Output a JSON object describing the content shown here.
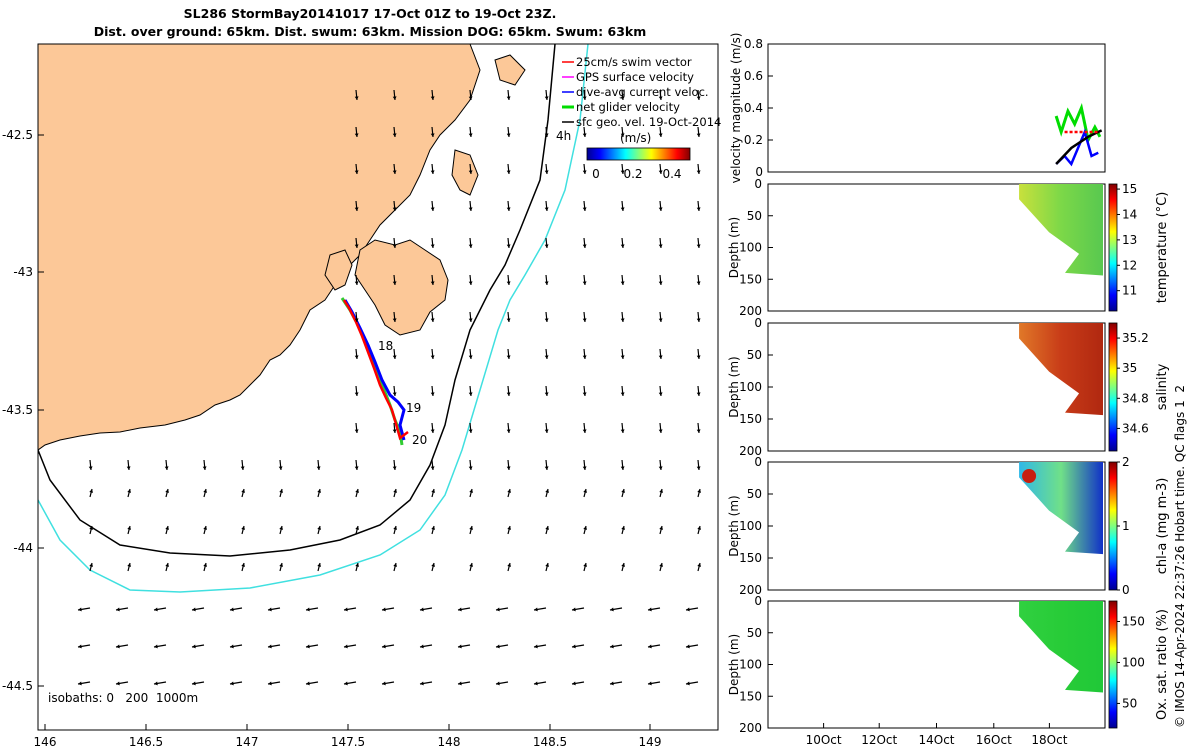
{
  "header": {
    "title_line1": "SL286 StormBay20141017 17-Oct 01Z to 19-Oct 23Z.",
    "title_line2": "Dist. over ground: 65km. Dist. swum: 63km. Mission DOG: 65km. Swum: 63km"
  },
  "map": {
    "x_ticks": [
      "146",
      "146.5",
      "147",
      "147.5",
      "148",
      "148.5",
      "149"
    ],
    "y_ticks": [
      "-42.5",
      "-43",
      "-43.5",
      "-44",
      "-44.5"
    ],
    "legend": [
      "25cm/s swim vector",
      "GPS surface velocity",
      "dive-avg current veloc.",
      "net glider velocity",
      "sfc geo. vel. 19-Oct-2014"
    ],
    "colorbar_title": "(m/s)",
    "colorbar_ticks": [
      "0",
      "0.2",
      "0.4"
    ],
    "isobaths_label": "isobaths: 0   200  1000m",
    "hour_label": "4h",
    "day_labels": [
      "18",
      "19",
      "20"
    ],
    "colors": {
      "land": "#fcc898",
      "isobath_200": "#000000",
      "isobath_1000": "#40e0e0",
      "track_red": "#ff0000",
      "track_blue": "#0000ff",
      "track_green": "#30cc30"
    }
  },
  "chart_data": [
    {
      "type": "line",
      "ylabel": "velocity magnitude (m/s)",
      "ylim": [
        0,
        0.8
      ],
      "yticks": [
        "0",
        "0.2",
        "0.4",
        "0.6",
        "0.8"
      ],
      "series": [
        {
          "color": "#00dd00",
          "x": [
            0.855,
            0.87,
            0.89,
            0.91,
            0.93,
            0.95,
            0.97,
            0.985
          ],
          "values": [
            0.35,
            0.25,
            0.38,
            0.3,
            0.4,
            0.2,
            0.28,
            0.22
          ]
        },
        {
          "color": "#0000ff",
          "x": [
            0.855,
            0.88,
            0.9,
            0.92,
            0.94,
            0.96,
            0.98
          ],
          "values": [
            0.05,
            0.1,
            0.05,
            0.15,
            0.25,
            0.1,
            0.12
          ]
        },
        {
          "color": "#000000",
          "x": [
            0.855,
            0.9,
            0.95,
            0.99
          ],
          "values": [
            0.05,
            0.15,
            0.22,
            0.26
          ]
        },
        {
          "color": "#ff0000",
          "x": [
            0.88,
            0.98
          ],
          "values": [
            0.25,
            0.25
          ]
        }
      ]
    },
    {
      "type": "heatmap",
      "ylabel": "Depth (m)",
      "colorbar_label": "temperature (°C)",
      "yticks": [
        "0",
        "50",
        "100",
        "150",
        "200"
      ],
      "cbar_ticks": [
        "11",
        "12",
        "13",
        "14",
        "15"
      ],
      "cbar_range": [
        10.2,
        15.2
      ]
    },
    {
      "type": "heatmap",
      "ylabel": "Depth (m)",
      "colorbar_label": "salinity",
      "yticks": [
        "0",
        "50",
        "100",
        "150",
        "200"
      ],
      "cbar_ticks": [
        "34.6",
        "34.8",
        "35",
        "35.2"
      ],
      "cbar_range": [
        34.45,
        35.3
      ]
    },
    {
      "type": "heatmap",
      "ylabel": "Depth (m)",
      "colorbar_label": "chl-a (mg m-3)",
      "yticks": [
        "0",
        "50",
        "100",
        "150",
        "200"
      ],
      "cbar_ticks": [
        "0",
        "1",
        "2"
      ],
      "cbar_range": [
        0,
        2
      ]
    },
    {
      "type": "heatmap",
      "ylabel": "Depth (m)",
      "colorbar_label": "Ox. sat. ratio (%)",
      "yticks": [
        "0",
        "50",
        "100",
        "150",
        "200"
      ],
      "cbar_ticks": [
        "50",
        "100",
        "150"
      ],
      "cbar_range": [
        20,
        175
      ]
    }
  ],
  "time_axis": [
    "10Oct",
    "12Oct",
    "14Oct",
    "16Oct",
    "18Oct"
  ],
  "side_note": "© IMOS 14-Apr-2024 22:37:26 Hobart time. QC flags 1  2"
}
